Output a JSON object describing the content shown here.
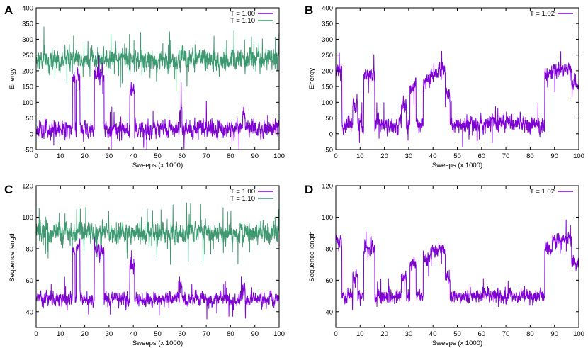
{
  "colors": {
    "purple": "#7f00d4",
    "green": "#3d9970",
    "frame": "#000000"
  },
  "chart_data": [
    {
      "id": "A",
      "panel_label": "A",
      "type": "line",
      "xlabel": "Sweeps (x 1000)",
      "ylabel": "Energy",
      "xlim": [
        0,
        100
      ],
      "ylim": [
        -50,
        400
      ],
      "xticks": [
        "0",
        "10",
        "20",
        "30",
        "40",
        "50",
        "60",
        "70",
        "80",
        "90",
        "100"
      ],
      "yticks": [
        "-50",
        "0",
        "50",
        "100",
        "150",
        "200",
        "250",
        "300",
        "350",
        "400"
      ],
      "legend": [
        "T = 1.00",
        "T = 1.10"
      ],
      "series": [
        {
          "name": "T = 1.00",
          "color": "#7f00d4",
          "base": 15,
          "noise": 22,
          "spike": 0.02,
          "seed": 11,
          "segments": [
            [
              15,
              16,
              170
            ],
            [
              16.5,
              18,
              190
            ],
            [
              24,
              28,
              185
            ],
            [
              38.5,
              40.5,
              140
            ],
            [
              59,
              60,
              70
            ],
            [
              85,
              86,
              60
            ]
          ]
        },
        {
          "name": "T = 1.10",
          "color": "#3d9970",
          "base": 235,
          "noise": 28,
          "spike": 0.03,
          "seed": 5,
          "segments": []
        }
      ]
    },
    {
      "id": "B",
      "panel_label": "B",
      "type": "line",
      "xlabel": "Sweeps (x 1000)",
      "ylabel": "Energy",
      "xlim": [
        0,
        100
      ],
      "ylim": [
        -50,
        400
      ],
      "xticks": [
        "0",
        "10",
        "20",
        "30",
        "40",
        "50",
        "60",
        "70",
        "80",
        "90",
        "100"
      ],
      "yticks": [
        "-50",
        "0",
        "50",
        "100",
        "150",
        "200",
        "250",
        "300",
        "350",
        "400"
      ],
      "legend": [
        "T = 1.02"
      ],
      "series": [
        {
          "name": "T = 1.02",
          "color": "#7f00d4",
          "base": 30,
          "noise": 22,
          "spike": 0.02,
          "seed": 23,
          "segments": [
            [
              0,
              2.5,
              195
            ],
            [
              7,
              9,
              90
            ],
            [
              11.5,
              16,
              190
            ],
            [
              27,
              29,
              90
            ],
            [
              30.5,
              33,
              145
            ],
            [
              36,
              39,
              165
            ],
            [
              39,
              45,
              195
            ],
            [
              45,
              47,
              110
            ],
            [
              86,
              89,
              190
            ],
            [
              89,
              97,
              205
            ],
            [
              97,
              100,
              160
            ]
          ]
        }
      ]
    },
    {
      "id": "C",
      "panel_label": "C",
      "type": "line",
      "xlabel": "Sweeps (x 1000)",
      "ylabel": "Sequence length",
      "xlim": [
        0,
        100
      ],
      "ylim": [
        30,
        120
      ],
      "xticks": [
        "0",
        "10",
        "20",
        "30",
        "40",
        "50",
        "60",
        "70",
        "80",
        "90",
        "100"
      ],
      "yticks": [
        "40",
        "60",
        "80",
        "100",
        "120"
      ],
      "legend": [
        "T = 1.00",
        "T = 1.10"
      ],
      "series": [
        {
          "name": "T = 1.00",
          "color": "#7f00d4",
          "base": 48,
          "noise": 3.5,
          "spike": 0.02,
          "seed": 13,
          "segments": [
            [
              15,
              16,
              78
            ],
            [
              16.5,
              18,
              82
            ],
            [
              24,
              28,
              80
            ],
            [
              38.5,
              40.5,
              70
            ],
            [
              59,
              60,
              58
            ],
            [
              85,
              86,
              55
            ]
          ]
        },
        {
          "name": "T = 1.10",
          "color": "#3d9970",
          "base": 90,
          "noise": 5.5,
          "spike": 0.03,
          "seed": 7,
          "segments": []
        }
      ]
    },
    {
      "id": "D",
      "panel_label": "D",
      "type": "line",
      "xlabel": "Sweeps (x 1000)",
      "ylabel": "Sequence length",
      "xlim": [
        0,
        100
      ],
      "ylim": [
        30,
        120
      ],
      "xticks": [
        "0",
        "10",
        "20",
        "30",
        "40",
        "50",
        "60",
        "70",
        "80",
        "90",
        "100"
      ],
      "yticks": [
        "40",
        "60",
        "80",
        "100",
        "120"
      ],
      "legend": [
        "T = 1.02"
      ],
      "series": [
        {
          "name": "T = 1.02",
          "color": "#7f00d4",
          "base": 50,
          "noise": 3.5,
          "spike": 0.02,
          "seed": 29,
          "segments": [
            [
              0,
              2.5,
              85
            ],
            [
              7,
              9,
              62
            ],
            [
              11.5,
              16,
              80
            ],
            [
              27,
              29,
              62
            ],
            [
              30.5,
              33,
              70
            ],
            [
              36,
              39,
              75
            ],
            [
              39,
              45,
              80
            ],
            [
              45,
              47,
              62
            ],
            [
              86,
              89,
              80
            ],
            [
              89,
              97,
              85
            ],
            [
              97,
              100,
              72
            ]
          ]
        }
      ]
    }
  ]
}
